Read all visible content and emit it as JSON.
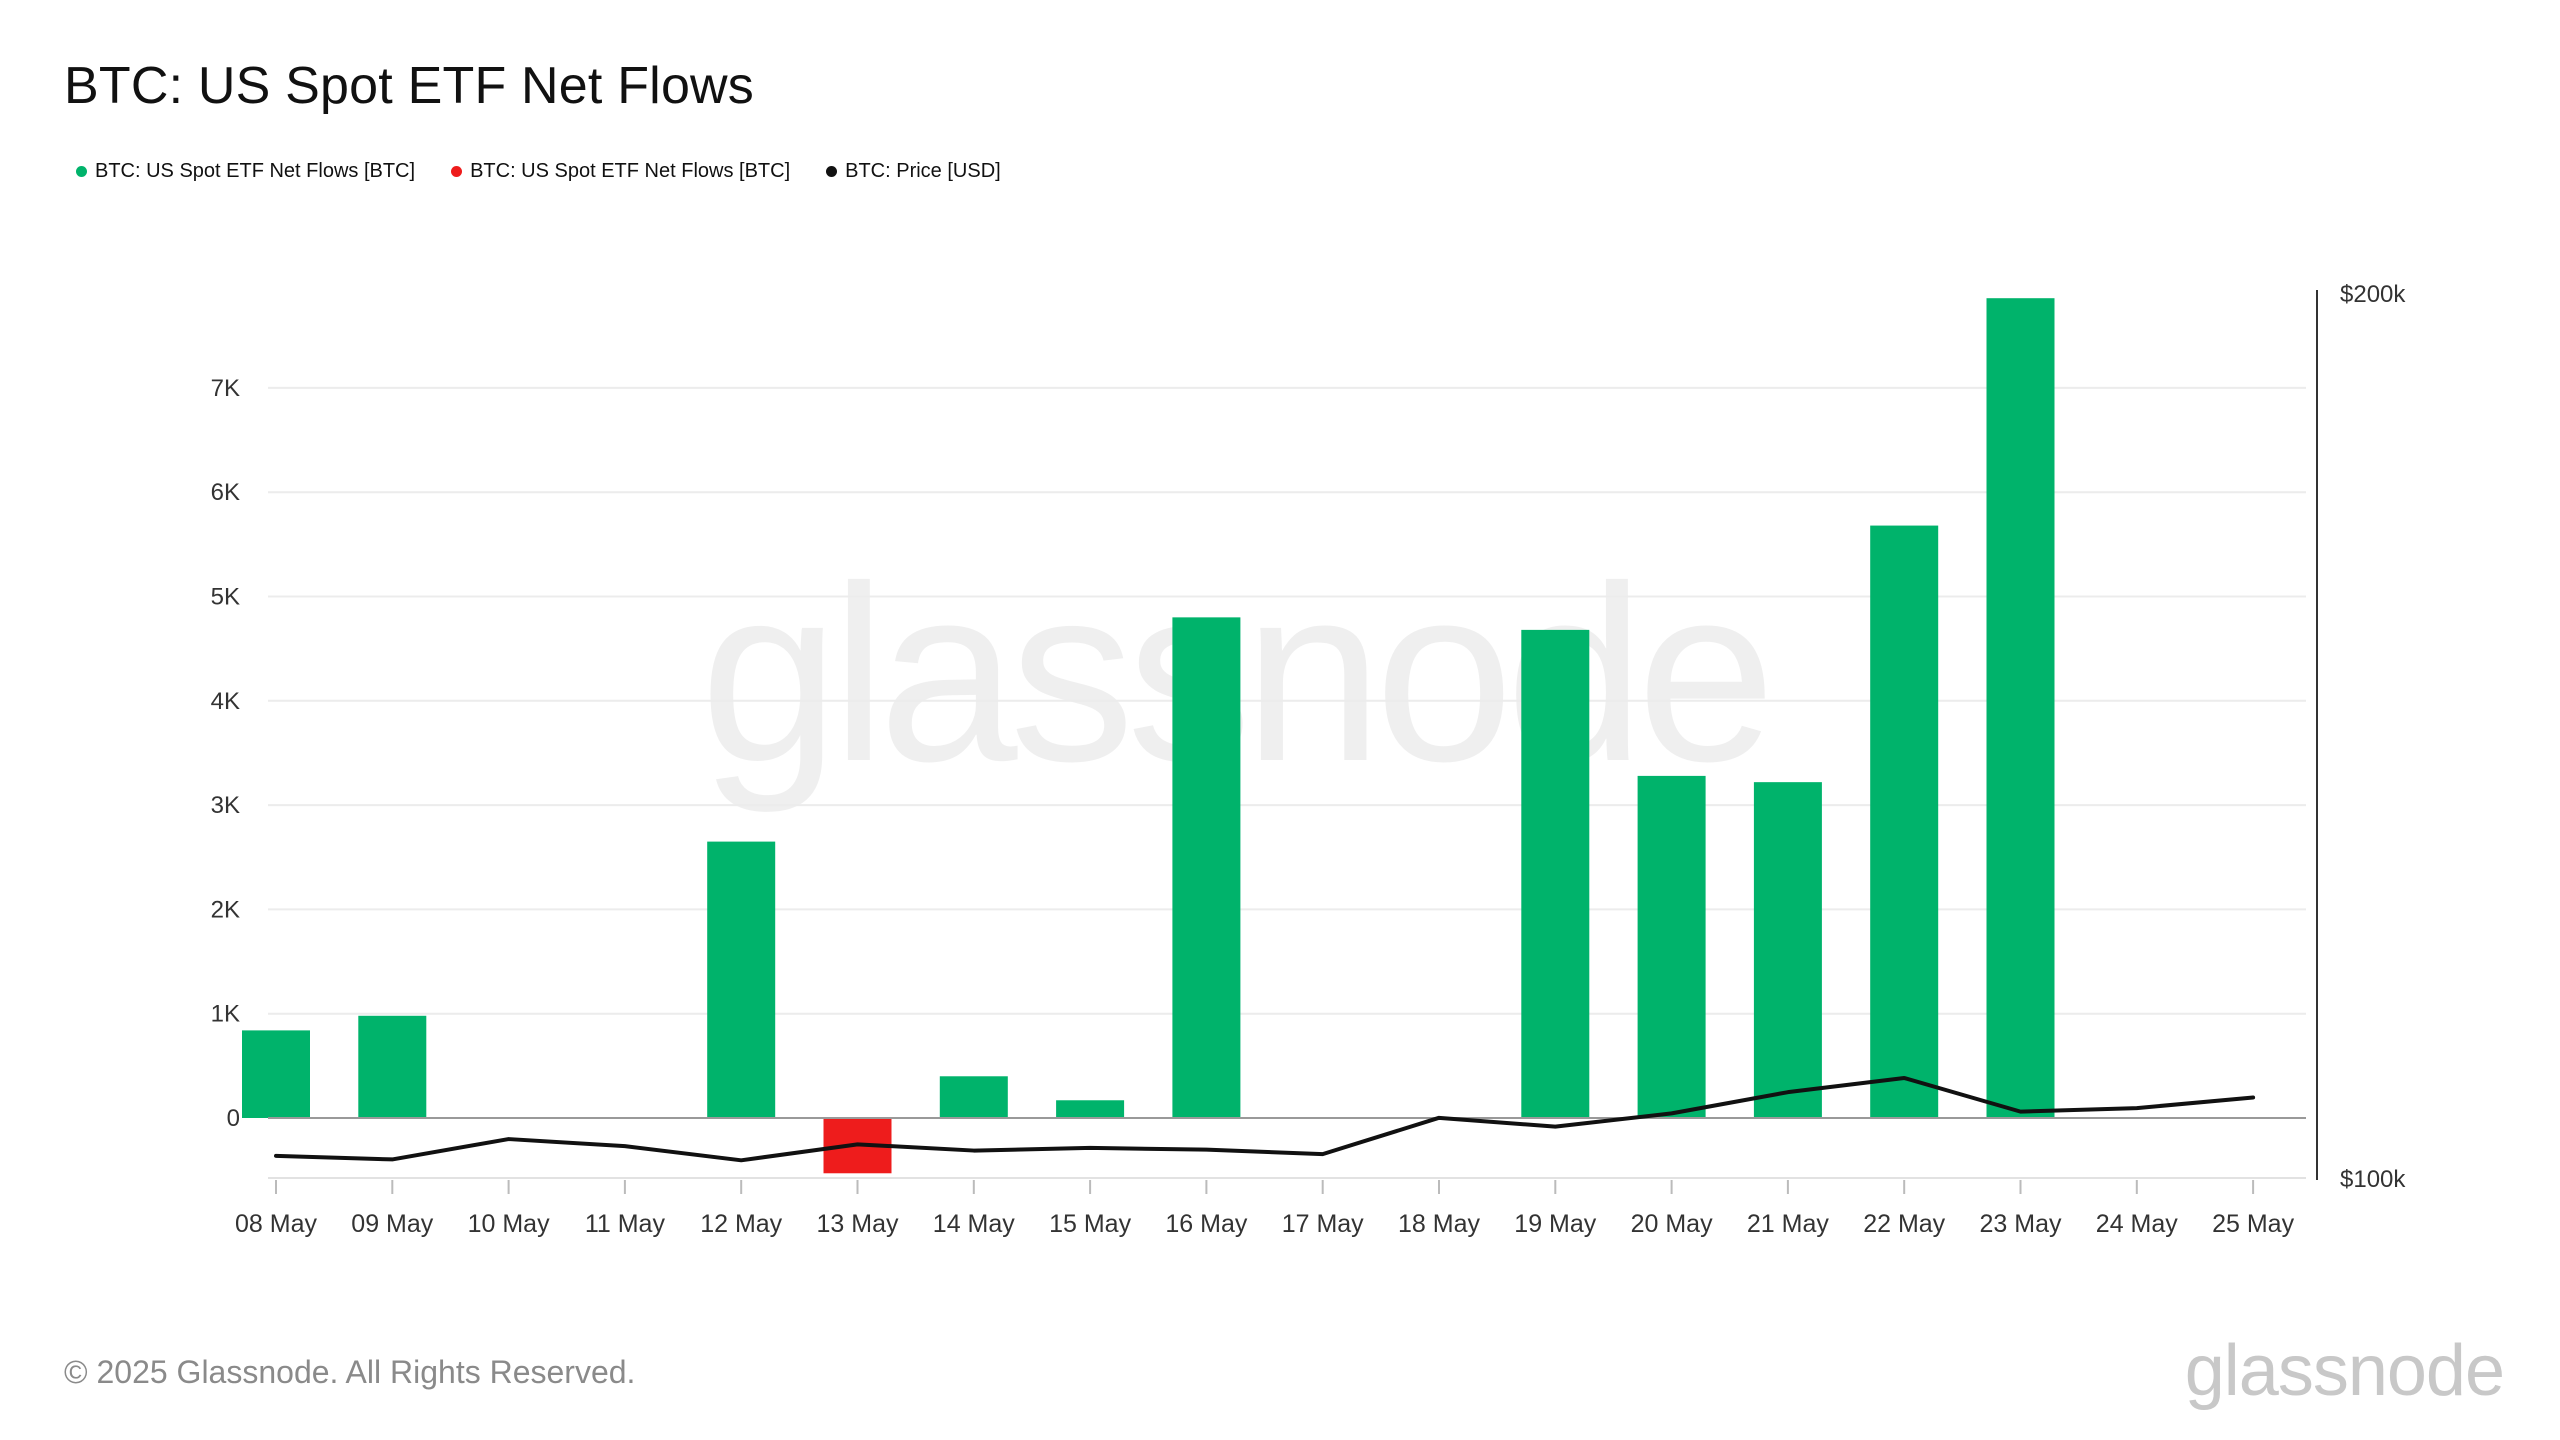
{
  "title": "BTC: US Spot ETF Net Flows",
  "legend": [
    {
      "label": "BTC: US Spot ETF Net Flows [BTC]",
      "color": "#00b36b"
    },
    {
      "label": "BTC: US Spot ETF Net Flows [BTC]",
      "color": "#ee1c1c"
    },
    {
      "label": "BTC: Price [USD]",
      "color": "#111111"
    }
  ],
  "watermark": "glassnode",
  "footer": "© 2025 Glassnode. All Rights Reserved.",
  "brand": "glassnode",
  "chart_data": {
    "type": "bar",
    "title": "BTC: US Spot ETF Net Flows",
    "categories": [
      "08 May",
      "09 May",
      "10 May",
      "11 May",
      "12 May",
      "13 May",
      "14 May",
      "15 May",
      "16 May",
      "17 May",
      "18 May",
      "19 May",
      "20 May",
      "21 May",
      "22 May",
      "23 May",
      "24 May",
      "25 May"
    ],
    "series": [
      {
        "name": "BTC: US Spot ETF Net Flows [BTC]",
        "kind": "bar",
        "axis": "left",
        "values": [
          840,
          980,
          0,
          0,
          2650,
          -530,
          400,
          170,
          4800,
          0,
          0,
          4680,
          3280,
          3220,
          5680,
          7860,
          0,
          0
        ],
        "positive_color": "#00b36b",
        "negative_color": "#ee1c1c"
      },
      {
        "name": "BTC: Price [USD]",
        "kind": "line",
        "axis": "right",
        "values": [
          102500,
          102100,
          104400,
          103600,
          102000,
          103800,
          103100,
          103400,
          103200,
          102700,
          106800,
          105800,
          107300,
          109700,
          111300,
          107500,
          107900,
          109100
        ],
        "color": "#111111"
      }
    ],
    "left_axis": {
      "ticks": [
        0,
        1000,
        2000,
        3000,
        4000,
        5000,
        6000,
        7000
      ],
      "tick_labels": [
        "0",
        "1K",
        "2K",
        "3K",
        "4K",
        "5K",
        "6K",
        "7K"
      ],
      "range": [
        -600,
        7900
      ]
    },
    "right_axis": {
      "ticks": [
        100000,
        200000
      ],
      "tick_labels": [
        "$100k",
        "$200k"
      ],
      "range": [
        100000,
        200000
      ]
    },
    "grid": true,
    "legend_position": "top-left"
  }
}
